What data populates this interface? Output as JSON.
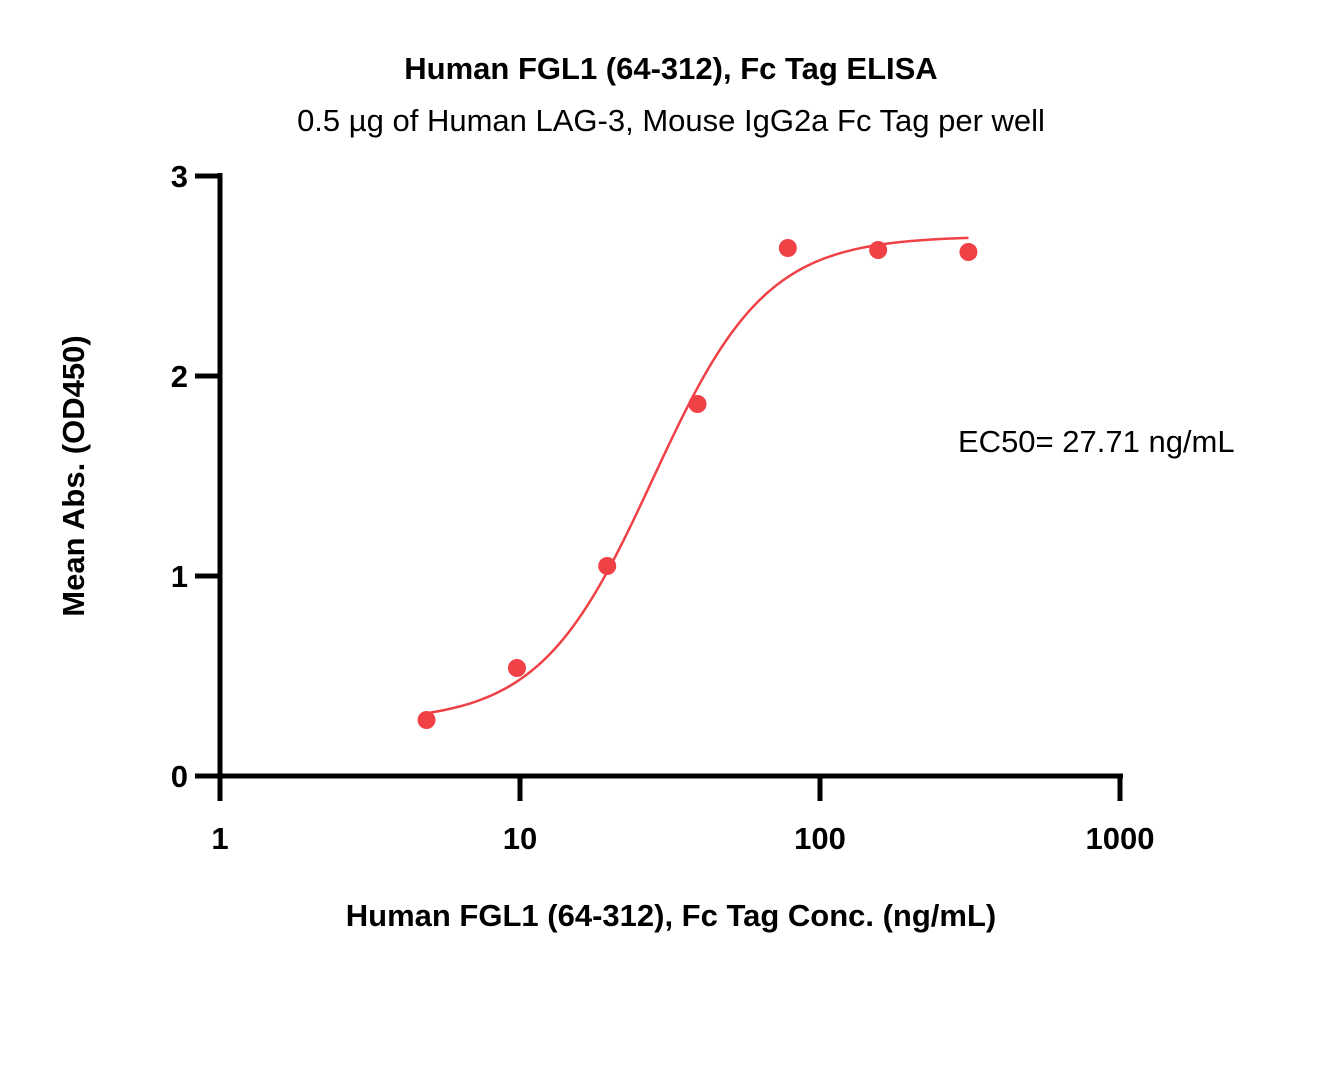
{
  "chart_data": {
    "type": "scatter",
    "title": "Human FGL1 (64-312), Fc Tag ELISA",
    "subtitle": "0.5 µg of Human LAG-3, Mouse IgG2a Fc Tag per well",
    "xlabel": "Human FGL1 (64-312), Fc Tag Conc. (ng/mL)",
    "ylabel": "Mean Abs. (OD450)",
    "xscale": "log",
    "xlim": [
      1,
      1000
    ],
    "ylim": [
      0,
      3
    ],
    "xticks": [
      "1",
      "10",
      "100",
      "1000"
    ],
    "xtick_values": [
      1,
      10,
      100,
      1000
    ],
    "yticks": [
      "0",
      "1",
      "2",
      "3"
    ],
    "ytick_values": [
      0,
      1,
      2,
      3
    ],
    "grid": false,
    "annotation": "EC50= 27.71 ng/mL",
    "color": "#ef4146",
    "series": [
      {
        "x": [
          4.88,
          9.77,
          19.53,
          39.06,
          78.13,
          156.25,
          312.5
        ],
        "y": [
          0.28,
          0.54,
          1.05,
          1.86,
          2.64,
          2.63,
          2.62
        ]
      }
    ],
    "fit": {
      "type": "4PL",
      "bottom": 0.27,
      "top": 2.7,
      "ec50": 27.71,
      "hill": 2.3,
      "x_range": [
        4.88,
        312.5
      ]
    }
  }
}
